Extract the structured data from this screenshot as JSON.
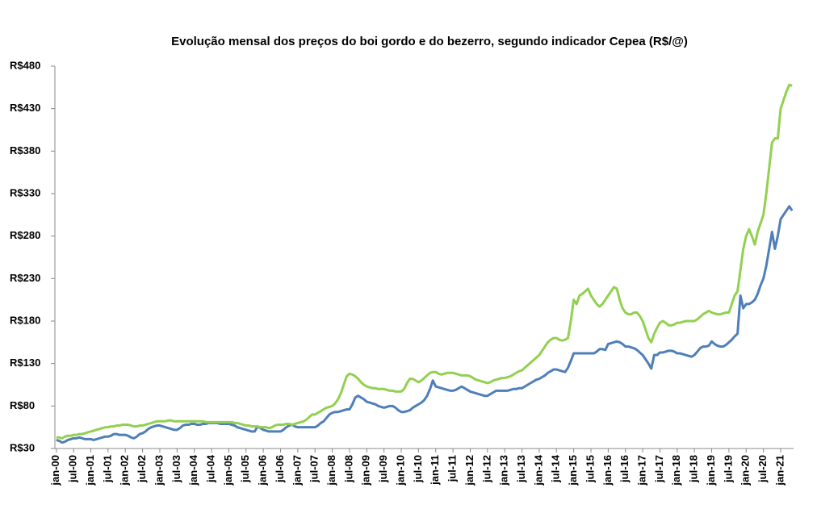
{
  "chart_data": {
    "type": "line",
    "title": "Evolução mensal dos preços  do boi gordo e do bezerro,  segundo  indicador Cepea (R$/@)",
    "categories": [
      "jan-00",
      null,
      null,
      null,
      null,
      null,
      "jul-00",
      null,
      null,
      null,
      null,
      null,
      "jan-01",
      null,
      null,
      null,
      null,
      null,
      "jul-01",
      null,
      null,
      null,
      null,
      null,
      "jan-02",
      null,
      null,
      null,
      null,
      null,
      "jul-02",
      null,
      null,
      null,
      null,
      null,
      "jan-03",
      null,
      null,
      null,
      null,
      null,
      "jul-03",
      null,
      null,
      null,
      null,
      null,
      "jan-04",
      null,
      null,
      null,
      null,
      null,
      "jul-04",
      null,
      null,
      null,
      null,
      null,
      "jan-05",
      null,
      null,
      null,
      null,
      null,
      "jul-05",
      null,
      null,
      null,
      null,
      null,
      "jan-06",
      null,
      null,
      null,
      null,
      null,
      "jul-06",
      null,
      null,
      null,
      null,
      null,
      "jan-07",
      null,
      null,
      null,
      null,
      null,
      "jul-07",
      null,
      null,
      null,
      null,
      null,
      "jan-08",
      null,
      null,
      null,
      null,
      null,
      "jul-08",
      null,
      null,
      null,
      null,
      null,
      "jan-09",
      null,
      null,
      null,
      null,
      null,
      "jul-09",
      null,
      null,
      null,
      null,
      null,
      "jan-10",
      null,
      null,
      null,
      null,
      null,
      "jul-10",
      null,
      null,
      null,
      null,
      null,
      "jan-11",
      null,
      null,
      null,
      null,
      null,
      "jul-11",
      null,
      null,
      null,
      null,
      null,
      "jan-12",
      null,
      null,
      null,
      null,
      null,
      "jul-12",
      null,
      null,
      null,
      null,
      null,
      "jan-13",
      null,
      null,
      null,
      null,
      null,
      "jul-13",
      null,
      null,
      null,
      null,
      null,
      "jan-14",
      null,
      null,
      null,
      null,
      null,
      "jul-14",
      null,
      null,
      null,
      null,
      null,
      "jan-15",
      null,
      null,
      null,
      null,
      null,
      "jul-15",
      null,
      null,
      null,
      null,
      null,
      "jan-16",
      null,
      null,
      null,
      null,
      null,
      "jul-16",
      null,
      null,
      null,
      null,
      null,
      "jan-17",
      null,
      null,
      null,
      null,
      null,
      "jul-17",
      null,
      null,
      null,
      null,
      null,
      "jan-18",
      null,
      null,
      null,
      null,
      null,
      "jul-18",
      null,
      null,
      null,
      null,
      null,
      "jan-19",
      null,
      null,
      null,
      null,
      null,
      "jul-19",
      null,
      null,
      null,
      null,
      null,
      "jan-20",
      null,
      null,
      null,
      null,
      null,
      "jul-20",
      null,
      null,
      null,
      null,
      null,
      "jan-21",
      null,
      null,
      null,
      null
    ],
    "series": [
      {
        "color": "#4f7fb8",
        "values": [
          40,
          39,
          37,
          38,
          40,
          41,
          42,
          42,
          43,
          42,
          41,
          41,
          41,
          40,
          41,
          42,
          43,
          44,
          44,
          45,
          47,
          47,
          46,
          46,
          46,
          45,
          43,
          42,
          44,
          47,
          48,
          50,
          53,
          55,
          56,
          57,
          57,
          56,
          55,
          54,
          53,
          52,
          52,
          54,
          57,
          58,
          58,
          59,
          59,
          58,
          58,
          59,
          59,
          60,
          60,
          60,
          60,
          59,
          59,
          59,
          59,
          58,
          57,
          55,
          54,
          53,
          52,
          51,
          50,
          50,
          56,
          54,
          52,
          51,
          50,
          50,
          50,
          50,
          50,
          52,
          55,
          57,
          58,
          56,
          55,
          55,
          55,
          55,
          55,
          55,
          55,
          57,
          60,
          62,
          66,
          70,
          72,
          73,
          73,
          74,
          75,
          76,
          76,
          82,
          90,
          92,
          90,
          88,
          85,
          84,
          83,
          82,
          80,
          79,
          78,
          79,
          80,
          80,
          78,
          75,
          73,
          73,
          74,
          75,
          78,
          80,
          82,
          84,
          87,
          92,
          100,
          110,
          103,
          102,
          101,
          100,
          99,
          98,
          98,
          99,
          101,
          103,
          101,
          99,
          97,
          96,
          95,
          94,
          93,
          92,
          92,
          94,
          96,
          98,
          98,
          98,
          98,
          98,
          99,
          100,
          100,
          101,
          101,
          103,
          105,
          107,
          109,
          111,
          112,
          114,
          116,
          119,
          121,
          123,
          123,
          122,
          121,
          120,
          125,
          133,
          142,
          142,
          142,
          142,
          142,
          142,
          142,
          142,
          144,
          147,
          147,
          146,
          153,
          154,
          155,
          156,
          155,
          153,
          150,
          150,
          149,
          148,
          146,
          143,
          140,
          135,
          130,
          124,
          140,
          140,
          143,
          143,
          144,
          145,
          145,
          144,
          142,
          142,
          141,
          140,
          139,
          138,
          140,
          144,
          148,
          150,
          150,
          151,
          156,
          153,
          151,
          150,
          150,
          152,
          155,
          158,
          162,
          165,
          210,
          195,
          200,
          200,
          202,
          205,
          212,
          222,
          230,
          245,
          265,
          285,
          265,
          280,
          300,
          305,
          310,
          315,
          310
        ]
      },
      {
        "color": "#92d050",
        "values": [
          43,
          43,
          42,
          44,
          45,
          45,
          46,
          46,
          47,
          47,
          48,
          49,
          50,
          51,
          52,
          53,
          54,
          55,
          55,
          56,
          56,
          57,
          57,
          58,
          58,
          58,
          57,
          56,
          56,
          57,
          57,
          58,
          59,
          60,
          61,
          62,
          62,
          62,
          62,
          63,
          63,
          62,
          62,
          62,
          62,
          62,
          62,
          62,
          62,
          62,
          62,
          62,
          61,
          61,
          61,
          61,
          61,
          61,
          61,
          61,
          61,
          61,
          60,
          60,
          59,
          58,
          57,
          57,
          56,
          56,
          56,
          55,
          55,
          55,
          54,
          55,
          57,
          58,
          58,
          58,
          59,
          59,
          58,
          59,
          60,
          61,
          62,
          64,
          67,
          70,
          70,
          72,
          74,
          76,
          78,
          79,
          80,
          83,
          88,
          95,
          105,
          115,
          118,
          117,
          115,
          112,
          108,
          105,
          103,
          102,
          101,
          101,
          100,
          100,
          100,
          99,
          98,
          98,
          97,
          97,
          97,
          100,
          107,
          112,
          112,
          110,
          108,
          110,
          113,
          116,
          119,
          120,
          120,
          118,
          117,
          118,
          119,
          119,
          119,
          118,
          117,
          116,
          116,
          116,
          115,
          113,
          111,
          110,
          109,
          108,
          107,
          108,
          110,
          111,
          112,
          113,
          113,
          114,
          115,
          117,
          119,
          121,
          122,
          125,
          128,
          131,
          134,
          137,
          140,
          145,
          150,
          155,
          158,
          160,
          160,
          158,
          157,
          158,
          160,
          180,
          205,
          200,
          210,
          212,
          215,
          218,
          210,
          205,
          200,
          197,
          200,
          205,
          210,
          215,
          220,
          218,
          205,
          195,
          190,
          188,
          188,
          190,
          190,
          186,
          180,
          170,
          160,
          155,
          165,
          172,
          178,
          180,
          178,
          175,
          175,
          176,
          178,
          178,
          179,
          180,
          180,
          180,
          180,
          182,
          185,
          188,
          190,
          192,
          190,
          189,
          188,
          188,
          189,
          190,
          190,
          200,
          210,
          215,
          240,
          265,
          280,
          288,
          280,
          270,
          285,
          295,
          305,
          330,
          360,
          390,
          395,
          395,
          430,
          440,
          450,
          458,
          457
        ]
      }
    ],
    "ylim": [
      30,
      480
    ],
    "yticks": [
      {
        "value": 30,
        "label": "R$30"
      },
      {
        "value": 80,
        "label": "R$80"
      },
      {
        "value": 130,
        "label": "R$130"
      },
      {
        "value": 180,
        "label": "R$180"
      },
      {
        "value": 230,
        "label": "R$230"
      },
      {
        "value": 280,
        "label": "R$280"
      },
      {
        "value": 330,
        "label": "R$330"
      },
      {
        "value": 380,
        "label": "R$380"
      },
      {
        "value": 430,
        "label": "R$430"
      },
      {
        "value": 480,
        "label": "R$480"
      }
    ],
    "grid": false
  }
}
